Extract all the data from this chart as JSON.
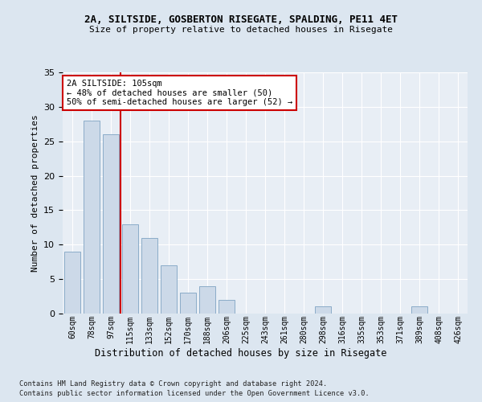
{
  "title1": "2A, SILTSIDE, GOSBERTON RISEGATE, SPALDING, PE11 4ET",
  "title2": "Size of property relative to detached houses in Risegate",
  "xlabel": "Distribution of detached houses by size in Risegate",
  "ylabel": "Number of detached properties",
  "categories": [
    "60sqm",
    "78sqm",
    "97sqm",
    "115sqm",
    "133sqm",
    "152sqm",
    "170sqm",
    "188sqm",
    "206sqm",
    "225sqm",
    "243sqm",
    "261sqm",
    "280sqm",
    "298sqm",
    "316sqm",
    "335sqm",
    "353sqm",
    "371sqm",
    "389sqm",
    "408sqm",
    "426sqm"
  ],
  "values": [
    9,
    28,
    26,
    13,
    11,
    7,
    3,
    4,
    2,
    0,
    0,
    0,
    0,
    1,
    0,
    0,
    0,
    0,
    1,
    0,
    0
  ],
  "bar_color": "#ccd9e8",
  "bar_edge_color": "#8bacc8",
  "vline_color": "#cc0000",
  "annotation_text": "2A SILTSIDE: 105sqm\n← 48% of detached houses are smaller (50)\n50% of semi-detached houses are larger (52) →",
  "annotation_box_color": "#cc0000",
  "ylim": [
    0,
    35
  ],
  "yticks": [
    0,
    5,
    10,
    15,
    20,
    25,
    30,
    35
  ],
  "footer1": "Contains HM Land Registry data © Crown copyright and database right 2024.",
  "footer2": "Contains public sector information licensed under the Open Government Licence v3.0.",
  "background_color": "#dce6f0",
  "plot_bg_color": "#e8eef5"
}
